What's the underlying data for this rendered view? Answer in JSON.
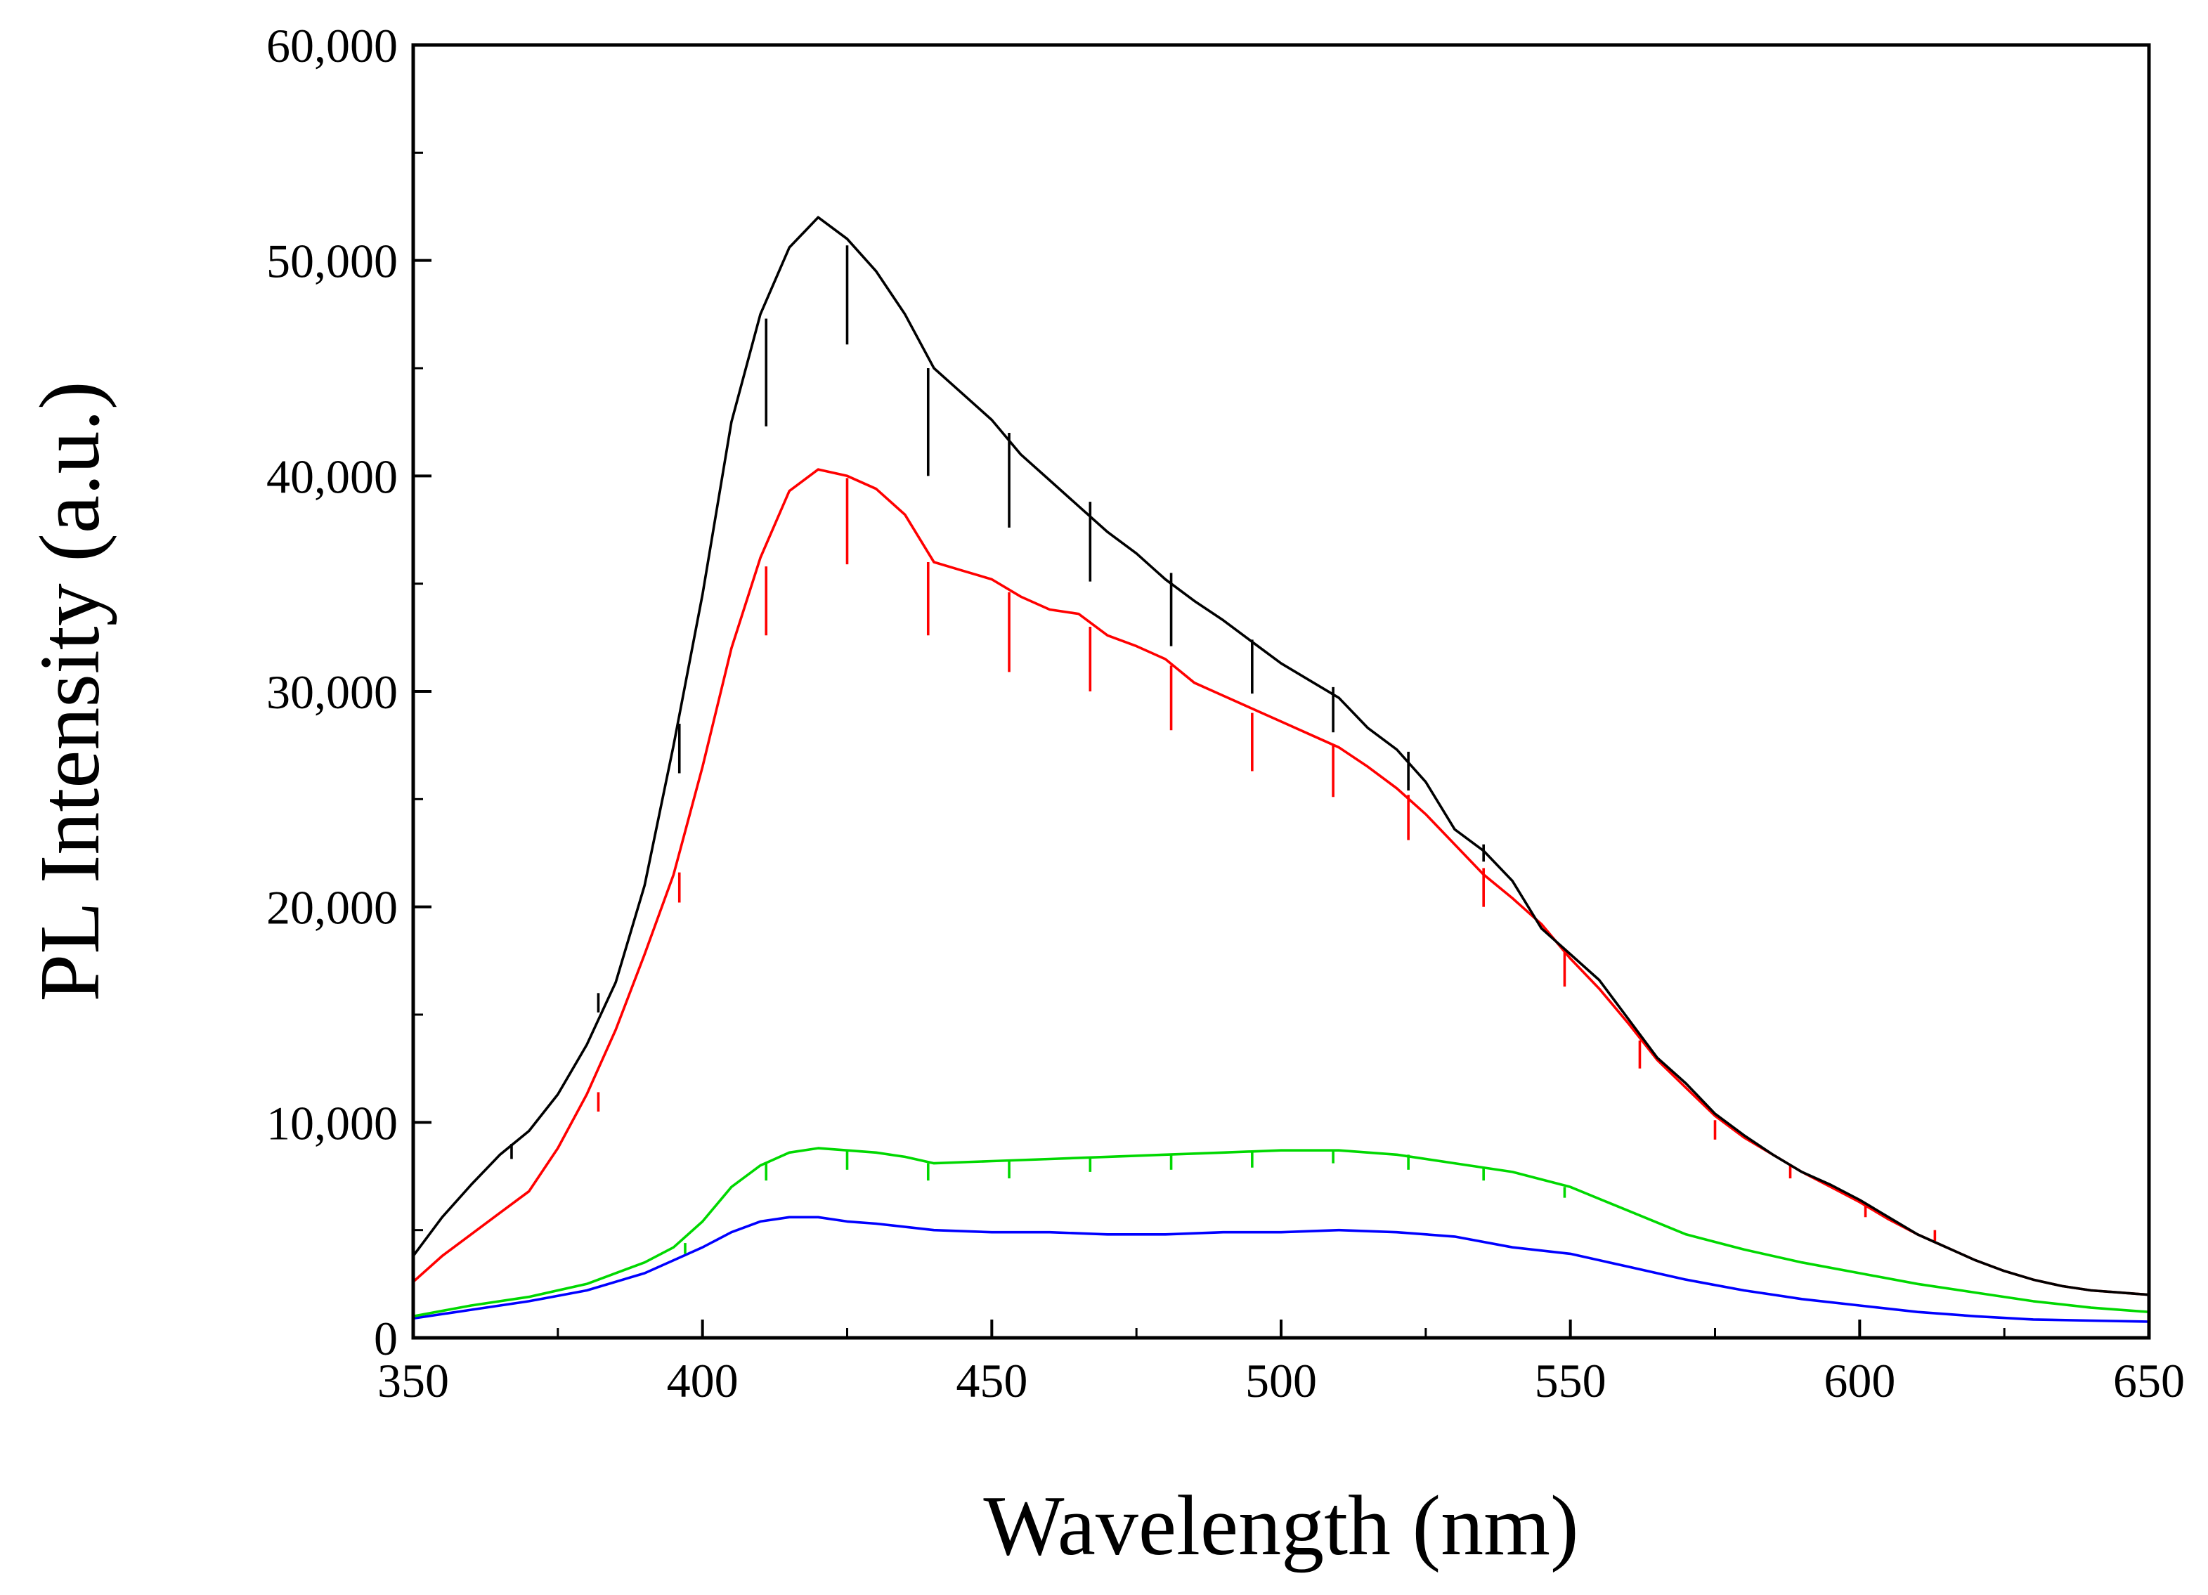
{
  "chart_data": {
    "type": "line",
    "title": "",
    "xlabel": "Wavelength (nm)",
    "ylabel": "PL Intensity (a.u.)",
    "xlim": [
      350,
      650
    ],
    "ylim": [
      0,
      60000
    ],
    "x_ticks": [
      350,
      400,
      450,
      500,
      550,
      600,
      650
    ],
    "x_tick_labels": [
      "350",
      "400",
      "450",
      "500",
      "550",
      "600",
      "650"
    ],
    "y_ticks": [
      0,
      10000,
      20000,
      30000,
      40000,
      50000,
      60000
    ],
    "y_tick_labels": [
      "0",
      "10,000",
      "20,000",
      "30,000",
      "40,000",
      "50,000",
      "60,000"
    ],
    "grid": false,
    "legend": "none",
    "series": [
      {
        "name": "black",
        "color": "#000000",
        "x": [
          350,
          355,
          360,
          365,
          370,
          375,
          380,
          385,
          390,
          395,
          400,
          405,
          410,
          415,
          420,
          425,
          430,
          435,
          440,
          445,
          450,
          455,
          460,
          465,
          470,
          475,
          480,
          485,
          490,
          495,
          500,
          505,
          510,
          515,
          520,
          525,
          530,
          535,
          540,
          545,
          550,
          555,
          560,
          565,
          570,
          575,
          580,
          585,
          590,
          595,
          600,
          605,
          610,
          615,
          620,
          625,
          630,
          635,
          640,
          645,
          650
        ],
        "y": [
          3800,
          5600,
          7100,
          8500,
          9600,
          11300,
          13600,
          16500,
          21000,
          27500,
          34500,
          42500,
          47500,
          50600,
          52000,
          51000,
          49500,
          47500,
          45000,
          43800,
          42600,
          41000,
          39800,
          38600,
          37400,
          36400,
          35200,
          34200,
          33300,
          32300,
          31300,
          30500,
          29700,
          28300,
          27300,
          25800,
          23600,
          22600,
          21200,
          19000,
          17800,
          16600,
          14800,
          13000,
          11800,
          10400,
          9400,
          8500,
          7700,
          7100,
          6400,
          5600,
          4800,
          4200,
          3600,
          3100,
          2700,
          2400,
          2200,
          2100,
          2000
        ],
        "spikes": [
          {
            "x": 367,
            "y": 9000,
            "depth": 700
          },
          {
            "x": 382,
            "y": 16000,
            "depth": 900
          },
          {
            "x": 396,
            "y": 28500,
            "depth": 2300
          },
          {
            "x": 411,
            "y": 47300,
            "depth": 5000
          },
          {
            "x": 425,
            "y": 50700,
            "depth": 4600
          },
          {
            "x": 439,
            "y": 45000,
            "depth": 5000
          },
          {
            "x": 453,
            "y": 42000,
            "depth": 4400
          },
          {
            "x": 467,
            "y": 38800,
            "depth": 3700
          },
          {
            "x": 481,
            "y": 35500,
            "depth": 3400
          },
          {
            "x": 495,
            "y": 32400,
            "depth": 2500
          },
          {
            "x": 509,
            "y": 30200,
            "depth": 2100
          },
          {
            "x": 522,
            "y": 27200,
            "depth": 1800
          },
          {
            "x": 535,
            "y": 22900,
            "depth": 800
          }
        ]
      },
      {
        "name": "red",
        "color": "#ff0000",
        "x": [
          350,
          355,
          360,
          365,
          370,
          375,
          380,
          385,
          390,
          395,
          400,
          405,
          410,
          415,
          420,
          425,
          430,
          435,
          440,
          445,
          450,
          455,
          460,
          465,
          470,
          475,
          480,
          485,
          490,
          495,
          500,
          505,
          510,
          515,
          520,
          525,
          530,
          535,
          540,
          545,
          550,
          555,
          560,
          565,
          570,
          575,
          580,
          585,
          590,
          595,
          600,
          605,
          610,
          615,
          620,
          625,
          630,
          635,
          640,
          645,
          650
        ],
        "y": [
          2600,
          3800,
          4800,
          5800,
          6800,
          8800,
          11300,
          14300,
          17800,
          21500,
          26500,
          32000,
          36200,
          39300,
          40300,
          40000,
          39400,
          38200,
          36000,
          35600,
          35200,
          34400,
          33800,
          33600,
          32600,
          32100,
          31500,
          30400,
          29800,
          29200,
          28600,
          28000,
          27400,
          26500,
          25500,
          24300,
          22900,
          21500,
          20400,
          19200,
          17600,
          16200,
          14600,
          12900,
          11600,
          10300,
          9300,
          8500,
          7700,
          7000,
          6300,
          5500,
          4800,
          4200,
          3600,
          3100,
          2700,
          2400,
          2200,
          2100,
          2000
        ],
        "spikes": [
          {
            "x": 382,
            "y": 11400,
            "depth": 900
          },
          {
            "x": 396,
            "y": 21600,
            "depth": 1400
          },
          {
            "x": 411,
            "y": 35800,
            "depth": 3200
          },
          {
            "x": 425,
            "y": 39900,
            "depth": 4000
          },
          {
            "x": 439,
            "y": 36000,
            "depth": 3400
          },
          {
            "x": 453,
            "y": 34600,
            "depth": 3700
          },
          {
            "x": 467,
            "y": 33000,
            "depth": 3000
          },
          {
            "x": 481,
            "y": 31200,
            "depth": 3000
          },
          {
            "x": 495,
            "y": 29000,
            "depth": 2700
          },
          {
            "x": 509,
            "y": 27500,
            "depth": 2400
          },
          {
            "x": 522,
            "y": 25200,
            "depth": 2100
          },
          {
            "x": 535,
            "y": 21800,
            "depth": 1800
          },
          {
            "x": 549,
            "y": 18000,
            "depth": 1700
          },
          {
            "x": 562,
            "y": 13800,
            "depth": 1300
          },
          {
            "x": 575,
            "y": 10100,
            "depth": 900
          },
          {
            "x": 588,
            "y": 8000,
            "depth": 600
          },
          {
            "x": 601,
            "y": 6200,
            "depth": 600
          },
          {
            "x": 613,
            "y": 5000,
            "depth": 500
          }
        ]
      },
      {
        "name": "green",
        "color": "#00d800",
        "x": [
          350,
          360,
          370,
          380,
          390,
          395,
          400,
          405,
          410,
          415,
          420,
          425,
          430,
          435,
          440,
          450,
          460,
          470,
          480,
          490,
          500,
          510,
          520,
          530,
          540,
          550,
          560,
          570,
          580,
          590,
          600,
          610,
          620,
          630,
          640,
          650
        ],
        "y": [
          1000,
          1500,
          1900,
          2500,
          3500,
          4200,
          5400,
          7000,
          8000,
          8600,
          8800,
          8700,
          8600,
          8400,
          8100,
          8200,
          8300,
          8400,
          8500,
          8600,
          8700,
          8700,
          8500,
          8100,
          7700,
          7000,
          5900,
          4800,
          4100,
          3500,
          3000,
          2500,
          2100,
          1700,
          1400,
          1200
        ],
        "spikes": [
          {
            "x": 397,
            "y": 4400,
            "depth": 500
          },
          {
            "x": 411,
            "y": 8100,
            "depth": 800
          },
          {
            "x": 425,
            "y": 8700,
            "depth": 900
          },
          {
            "x": 439,
            "y": 8100,
            "depth": 800
          },
          {
            "x": 453,
            "y": 8200,
            "depth": 800
          },
          {
            "x": 467,
            "y": 8400,
            "depth": 700
          },
          {
            "x": 481,
            "y": 8500,
            "depth": 700
          },
          {
            "x": 495,
            "y": 8600,
            "depth": 700
          },
          {
            "x": 509,
            "y": 8700,
            "depth": 600
          },
          {
            "x": 522,
            "y": 8500,
            "depth": 700
          },
          {
            "x": 535,
            "y": 7900,
            "depth": 600
          },
          {
            "x": 549,
            "y": 7000,
            "depth": 500
          }
        ]
      },
      {
        "name": "blue",
        "color": "#0000ff",
        "x": [
          350,
          360,
          370,
          380,
          390,
          395,
          400,
          405,
          410,
          415,
          420,
          425,
          430,
          440,
          450,
          460,
          470,
          480,
          490,
          500,
          510,
          520,
          530,
          540,
          550,
          560,
          570,
          580,
          590,
          600,
          610,
          620,
          630,
          640,
          650
        ],
        "y": [
          900,
          1300,
          1700,
          2200,
          3000,
          3600,
          4200,
          4900,
          5400,
          5600,
          5600,
          5400,
          5300,
          5000,
          4900,
          4900,
          4800,
          4800,
          4900,
          4900,
          5000,
          4900,
          4700,
          4200,
          3900,
          3300,
          2700,
          2200,
          1800,
          1500,
          1200,
          1000,
          850,
          800,
          750
        ],
        "spikes": []
      }
    ]
  }
}
